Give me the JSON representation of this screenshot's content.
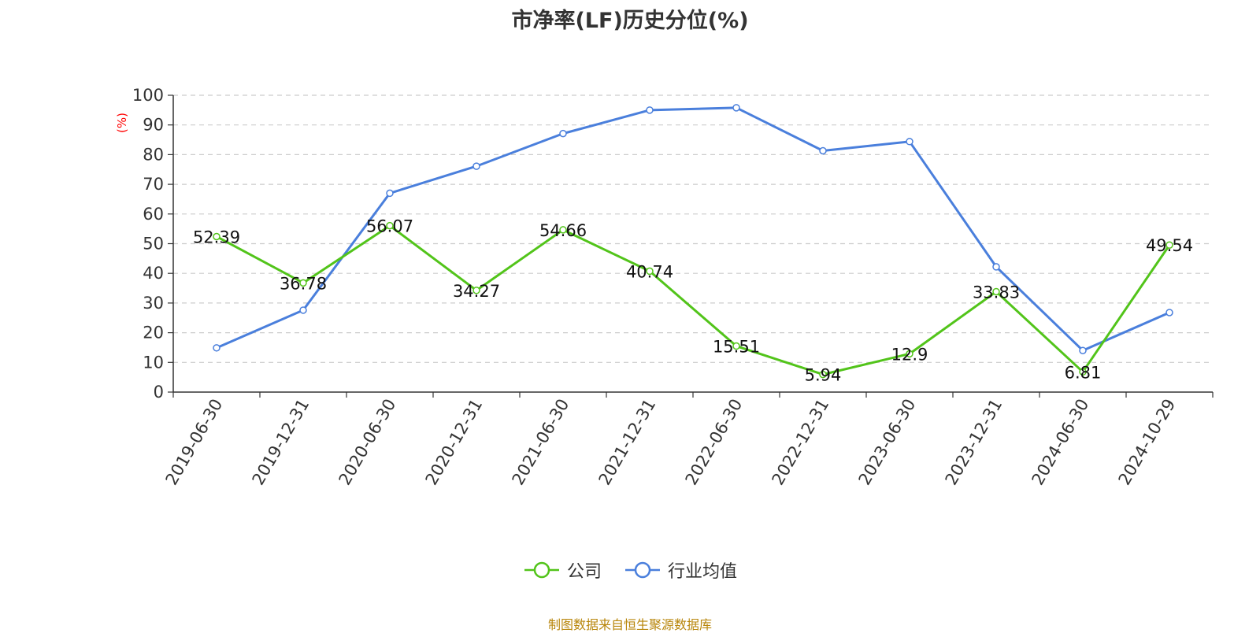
{
  "title": "市净率(LF)历史分位(%)",
  "source_note": "制图数据来自恒生聚源数据库",
  "chart_data": {
    "type": "line",
    "title": "市净率(LF)历史分位(%)",
    "ylabel": "(%)",
    "ylim": [
      0,
      100
    ],
    "yticks": [
      0,
      10,
      20,
      30,
      40,
      50,
      60,
      70,
      80,
      90,
      100
    ],
    "categories": [
      "2019-06-30",
      "2019-12-31",
      "2020-06-30",
      "2020-12-31",
      "2021-06-30",
      "2021-12-31",
      "2022-06-30",
      "2022-12-31",
      "2023-06-30",
      "2023-12-31",
      "2024-06-30",
      "2024-10-29"
    ],
    "grid": true,
    "legend_position": "bottom-center",
    "series": [
      {
        "name": "公司",
        "color": "#52c41a",
        "show_labels": true,
        "values": [
          52.39,
          36.78,
          56.07,
          34.27,
          54.66,
          40.74,
          15.51,
          5.94,
          12.9,
          33.83,
          6.81,
          49.54
        ]
      },
      {
        "name": "行业均值",
        "color": "#4a7fdc",
        "show_labels": false,
        "values": [
          14.9,
          27.6,
          67.0,
          76.1,
          87.1,
          95.0,
          95.8,
          81.3,
          84.4,
          42.2,
          14.0,
          26.8
        ]
      }
    ]
  }
}
